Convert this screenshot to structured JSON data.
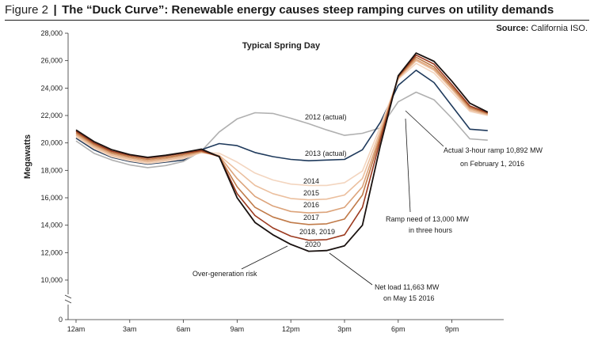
{
  "header": {
    "figure_label": "Figure 2",
    "separator": "|",
    "title": "The “Duck Curve”: Renewable energy causes steep ramping curves on utility demands",
    "source_label": "Source:",
    "source_value": "California ISO."
  },
  "chart_data": {
    "type": "line",
    "subtitle": "Typical Spring Day",
    "ylabel": "Megawatts",
    "ylim": [
      10000,
      28000
    ],
    "yticks": [
      "28,000",
      "26,000",
      "24,000",
      "22,000",
      "20,000",
      "18,000",
      "16,000",
      "14,000",
      "12,000",
      "10,000"
    ],
    "y_zero_label": "0",
    "x_ticks": [
      "12am",
      "3am",
      "6am",
      "9am",
      "12pm",
      "3pm",
      "6pm",
      "9pm"
    ],
    "x": [
      0,
      1,
      2,
      3,
      4,
      5,
      6,
      7,
      8,
      9,
      10,
      11,
      12,
      13,
      14,
      15,
      16,
      17,
      18,
      19,
      20,
      21,
      22,
      23
    ],
    "series": [
      {
        "name": "2012 (actual)",
        "color": "#b0b0b0",
        "values": [
          20150,
          19250,
          18750,
          18400,
          18200,
          18350,
          18650,
          19400,
          20800,
          21750,
          22200,
          22150,
          21800,
          21400,
          20950,
          20550,
          20700,
          21100,
          23000,
          23700,
          23150,
          21800,
          20300,
          20200
        ]
      },
      {
        "name": "2013 (actual)",
        "color": "#1f3a5c",
        "values": [
          20350,
          19500,
          18950,
          18650,
          18450,
          18600,
          18750,
          19500,
          19950,
          19800,
          19300,
          19000,
          18800,
          18700,
          18750,
          18800,
          19500,
          21500,
          24200,
          25300,
          24400,
          22700,
          21000,
          20900
        ]
      },
      {
        "name": "2014",
        "color": "#f3d5bf",
        "values": [
          20450,
          19600,
          19000,
          18700,
          18500,
          18650,
          18850,
          19300,
          19250,
          18600,
          17800,
          17300,
          17000,
          16900,
          16900,
          17100,
          17950,
          21200,
          24650,
          25800,
          25100,
          23700,
          22300,
          22000
        ]
      },
      {
        "name": "2015",
        "color": "#ebbf9e",
        "values": [
          20550,
          19700,
          19100,
          18800,
          18600,
          18750,
          18950,
          19300,
          19100,
          18000,
          16900,
          16300,
          15950,
          15850,
          15900,
          16200,
          17400,
          20900,
          24700,
          26000,
          25300,
          23900,
          22400,
          22050
        ]
      },
      {
        "name": "2016",
        "color": "#dca37a",
        "values": [
          20650,
          19800,
          19200,
          18900,
          18700,
          18850,
          19050,
          19350,
          19050,
          17400,
          16100,
          15400,
          15000,
          14900,
          14950,
          15300,
          16800,
          20650,
          24750,
          26100,
          25400,
          24000,
          22500,
          22100
        ]
      },
      {
        "name": "2017",
        "color": "#c07a48",
        "values": [
          20750,
          19900,
          19300,
          19000,
          18800,
          18950,
          19150,
          19400,
          19000,
          16800,
          15300,
          14600,
          14200,
          14050,
          14100,
          14450,
          16200,
          20450,
          24800,
          26250,
          25550,
          24100,
          22600,
          22150
        ]
      },
      {
        "name": "2018, 2019",
        "color": "#9c3a1f",
        "values": [
          20850,
          20000,
          19400,
          19100,
          18900,
          19050,
          19250,
          19450,
          19000,
          16300,
          14700,
          13800,
          13200,
          12900,
          12950,
          13300,
          15300,
          20200,
          24850,
          26400,
          25750,
          24250,
          22700,
          22200
        ]
      },
      {
        "name": "2020",
        "color": "#1a1210",
        "values": [
          20950,
          20100,
          19500,
          19150,
          18950,
          19100,
          19300,
          19550,
          19000,
          16000,
          14200,
          13300,
          12600,
          12100,
          12150,
          12500,
          14000,
          19800,
          24900,
          26550,
          25950,
          24500,
          22900,
          22250
        ]
      }
    ],
    "annotations": [
      {
        "text": "Typical Spring Day"
      },
      {
        "text": "2012 (actual)"
      },
      {
        "text": "2013 (actual)"
      },
      {
        "text": "2014"
      },
      {
        "text": "2015"
      },
      {
        "text": "2016"
      },
      {
        "text": "2017"
      },
      {
        "text": "2018, 2019"
      },
      {
        "text": "2020"
      },
      {
        "text": "Over-generation risk"
      },
      {
        "text": "Net load 11,663 MW"
      },
      {
        "text": "on May 15 2016"
      },
      {
        "text": "Ramp need of 13,000 MW"
      },
      {
        "text": "in three hours"
      },
      {
        "text": "Actual 3-hour ramp 10,892 MW"
      },
      {
        "text": "on February 1, 2016"
      }
    ],
    "grid": false,
    "legend": "none (direct labels on lines)"
  }
}
